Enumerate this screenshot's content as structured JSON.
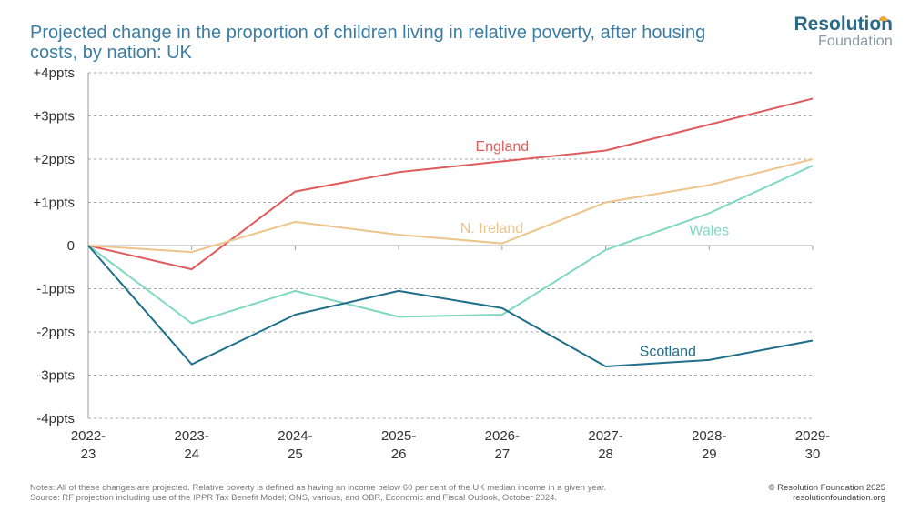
{
  "header": {
    "title": "Projected change in the proportion of children living in relative poverty, after housing costs, by nation: UK",
    "logo_line1": "Resolution",
    "logo_line2": "Foundation"
  },
  "footer": {
    "notes": "Notes: All of these changes are projected. Relative poverty is defined as having an income below 60 per cent of the UK median income in a given year.",
    "source": "Source: RF projection including use of the IPPR Tax Benefit Model; ONS, various, and OBR, Economic and Fiscal Outlook, October 2024.",
    "copyright": "© Resolution Foundation 2025",
    "website": "resolutionfoundation.org"
  },
  "chart_data": {
    "type": "line",
    "title": "Projected change in the proportion of children living in relative poverty, after housing costs, by nation: UK",
    "xlabel": "",
    "ylabel": "",
    "categories": [
      [
        "2022-",
        "23"
      ],
      [
        "2023-",
        "24"
      ],
      [
        "2024-",
        "25"
      ],
      [
        "2025-",
        "26"
      ],
      [
        "2026-",
        "27"
      ],
      [
        "2027-",
        "28"
      ],
      [
        "2028-",
        "29"
      ],
      [
        "2029-",
        "30"
      ]
    ],
    "ylim": [
      -4,
      4
    ],
    "yticks": [
      {
        "value": 4,
        "label": "+4ppts"
      },
      {
        "value": 3,
        "label": "+3ppts"
      },
      {
        "value": 2,
        "label": "+2ppts"
      },
      {
        "value": 1,
        "label": "+1ppts"
      },
      {
        "value": 0,
        "label": "0"
      },
      {
        "value": -1,
        "label": "-1ppts"
      },
      {
        "value": -2,
        "label": "-2ppts"
      },
      {
        "value": -3,
        "label": "-3ppts"
      },
      {
        "value": -4,
        "label": "-4ppts"
      }
    ],
    "grid": "horizontal dashed",
    "series": [
      {
        "name": "England",
        "color": "#e05c5c",
        "values": [
          0,
          -0.55,
          1.25,
          1.7,
          1.95,
          2.2,
          2.8,
          3.4
        ],
        "label_at": [
          4,
          2.3
        ]
      },
      {
        "name": "N. Ireland",
        "color": "#edc48a",
        "values": [
          0,
          -0.15,
          0.55,
          0.25,
          0.05,
          1.0,
          1.4,
          2.0
        ],
        "label_at": [
          3.9,
          0.4
        ]
      },
      {
        "name": "Wales",
        "color": "#7ed9c0",
        "values": [
          0,
          -1.8,
          -1.05,
          -1.65,
          -1.6,
          -0.1,
          0.75,
          1.85
        ],
        "label_at": [
          6.0,
          0.35
        ]
      },
      {
        "name": "Scotland",
        "color": "#1f6f8b",
        "values": [
          0,
          -2.75,
          -1.6,
          -1.05,
          -1.45,
          -2.8,
          -2.65,
          -2.2
        ],
        "label_at": [
          5.6,
          -2.45
        ]
      }
    ]
  }
}
